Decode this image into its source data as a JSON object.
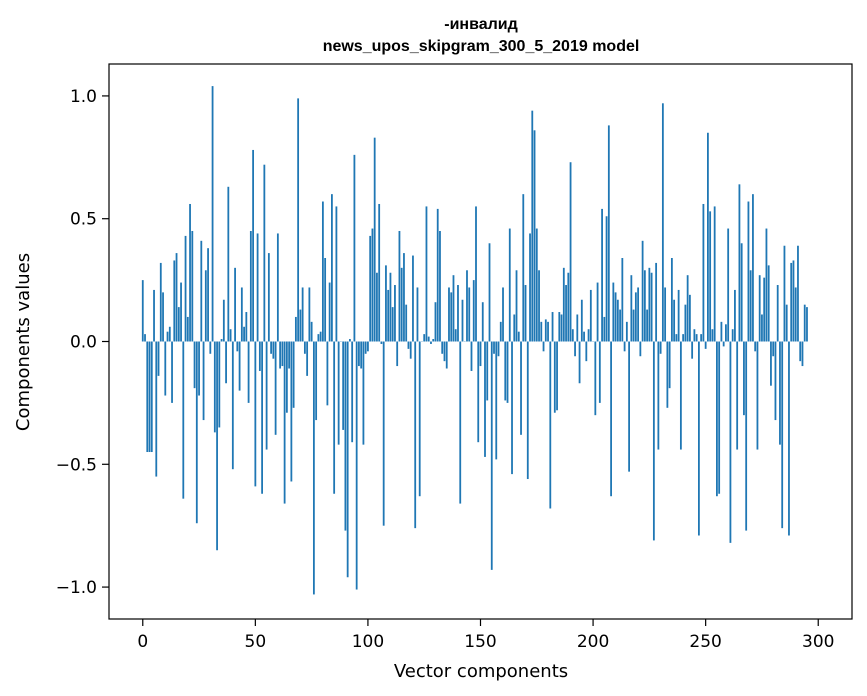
{
  "chart_data": {
    "type": "bar",
    "title_line1": "-инвалид",
    "title_line2": "news_upos_skipgram_300_5_2019 model",
    "xlabel": "Vector components",
    "ylabel": "Components values",
    "xlim": [
      -15,
      315
    ],
    "ylim": [
      -1.13,
      1.13
    ],
    "xticks": [
      0,
      50,
      100,
      150,
      200,
      250,
      300
    ],
    "xtick_labels": [
      "0",
      "50",
      "100",
      "150",
      "200",
      "250",
      "300"
    ],
    "yticks": [
      -1.0,
      -0.5,
      0.0,
      0.5,
      1.0
    ],
    "ytick_labels": [
      "−1.0",
      "−0.5",
      "0.0",
      "0.5",
      "1.0"
    ],
    "bar_color": "#1f77b4",
    "values": [
      0.25,
      0.03,
      -0.45,
      -0.45,
      -0.45,
      0.21,
      -0.55,
      -0.14,
      0.32,
      0.2,
      -0.22,
      0.04,
      0.06,
      -0.25,
      0.33,
      0.36,
      0.14,
      0.24,
      -0.64,
      0.43,
      0.1,
      0.56,
      0.45,
      -0.19,
      -0.74,
      -0.22,
      0.41,
      -0.32,
      0.29,
      0.38,
      -0.05,
      1.04,
      -0.37,
      -0.85,
      -0.35,
      0.01,
      0.17,
      -0.17,
      0.63,
      0.05,
      -0.52,
      0.3,
      -0.04,
      -0.2,
      0.22,
      0.06,
      0.12,
      -0.25,
      0.45,
      0.78,
      -0.59,
      0.44,
      -0.12,
      -0.62,
      0.72,
      -0.44,
      0.36,
      -0.05,
      -0.07,
      -0.38,
      0.44,
      -0.11,
      -0.1,
      -0.66,
      -0.29,
      -0.11,
      -0.57,
      -0.27,
      0.1,
      0.99,
      0.13,
      0.22,
      -0.05,
      -0.14,
      0.22,
      0.08,
      -1.03,
      -0.32,
      0.03,
      0.04,
      0.57,
      0.34,
      -0.26,
      0.24,
      0.6,
      -0.62,
      0.55,
      -0.42,
      0.0,
      -0.36,
      -0.77,
      -0.96,
      0.01,
      -0.41,
      0.76,
      -1.01,
      -0.1,
      -0.11,
      -0.42,
      -0.05,
      -0.04,
      0.43,
      0.46,
      0.83,
      0.28,
      0.56,
      -0.01,
      -0.75,
      0.31,
      0.21,
      0.28,
      0.14,
      0.23,
      -0.1,
      0.45,
      0.3,
      0.36,
      0.15,
      -0.03,
      -0.07,
      0.35,
      -0.76,
      0.22,
      -0.63,
      0.0,
      0.03,
      0.55,
      0.02,
      -0.01,
      0.01,
      0.16,
      0.54,
      0.45,
      -0.05,
      -0.08,
      -0.11,
      0.22,
      0.2,
      0.27,
      0.05,
      0.23,
      -0.66,
      0.17,
      0.0,
      0.29,
      0.22,
      -0.12,
      0.25,
      0.55,
      -0.41,
      -0.1,
      0.16,
      -0.47,
      -0.24,
      0.4,
      -0.93,
      -0.05,
      -0.48,
      -0.06,
      0.08,
      0.22,
      -0.24,
      -0.25,
      0.46,
      -0.54,
      0.11,
      0.29,
      0.04,
      -0.38,
      0.6,
      0.23,
      -0.56,
      0.44,
      0.94,
      0.86,
      0.46,
      0.29,
      0.08,
      -0.04,
      0.09,
      0.08,
      -0.68,
      0.12,
      -0.29,
      -0.28,
      0.12,
      0.11,
      0.3,
      0.23,
      0.28,
      0.73,
      0.05,
      -0.06,
      0.11,
      -0.17,
      0.17,
      0.04,
      -0.08,
      0.05,
      0.21,
      0.0,
      -0.3,
      0.24,
      -0.25,
      0.54,
      0.1,
      0.51,
      0.88,
      -0.63,
      0.24,
      0.2,
      0.17,
      0.13,
      0.34,
      -0.04,
      0.08,
      -0.53,
      0.27,
      0.13,
      0.2,
      0.22,
      -0.06,
      0.41,
      0.29,
      0.13,
      0.3,
      0.28,
      -0.81,
      0.32,
      -0.44,
      -0.05,
      0.97,
      0.22,
      -0.27,
      -0.19,
      0.34,
      0.17,
      0.03,
      0.21,
      -0.44,
      0.03,
      0.15,
      0.27,
      0.19,
      -0.07,
      0.05,
      0.03,
      -0.79,
      0.03,
      0.56,
      -0.03,
      0.85,
      0.53,
      0.05,
      0.55,
      -0.63,
      -0.62,
      0.08,
      -0.02,
      0.07,
      0.46,
      -0.82,
      0.05,
      0.21,
      -0.44,
      0.64,
      0.4,
      -0.3,
      -0.77,
      0.57,
      0.29,
      0.6,
      -0.04,
      -0.44,
      0.27,
      0.11,
      0.26,
      0.46,
      0.31,
      -0.18,
      -0.06,
      -0.32,
      0.23,
      -0.42,
      -0.76,
      0.39,
      0.15,
      -0.79,
      0.32,
      0.33,
      0.22,
      0.39,
      -0.08,
      -0.1,
      0.15,
      0.14
    ]
  }
}
